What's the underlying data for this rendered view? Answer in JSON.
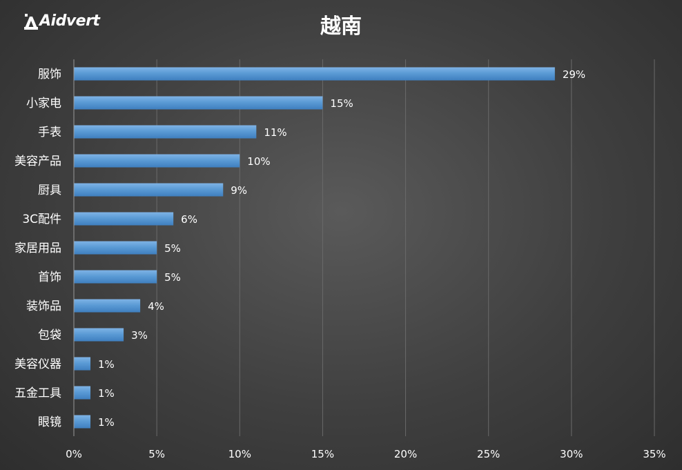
{
  "logo": {
    "text": "Aidvert"
  },
  "chart_data": {
    "type": "bar",
    "orientation": "horizontal",
    "title": "越南",
    "categories": [
      "服饰",
      "小家电",
      "手表",
      "美容产品",
      "厨具",
      "3C配件",
      "家居用品",
      "首饰",
      "装饰品",
      "包袋",
      "美容仪器",
      "五金工具",
      "眼镜"
    ],
    "values": [
      29,
      15,
      11,
      10,
      9,
      6,
      5,
      5,
      4,
      3,
      1,
      1,
      1
    ],
    "value_labels": [
      "29%",
      "15%",
      "11%",
      "10%",
      "9%",
      "6%",
      "5%",
      "5%",
      "4%",
      "3%",
      "1%",
      "1%",
      "1%"
    ],
    "xlim": [
      0,
      35
    ],
    "xticks": [
      0,
      5,
      10,
      15,
      20,
      25,
      30,
      35
    ],
    "xtick_labels": [
      "0%",
      "5%",
      "10%",
      "15%",
      "20%",
      "25%",
      "30%",
      "35%"
    ],
    "grid": "vertical",
    "bar_color": "#5b9bd5",
    "legend": "none"
  }
}
